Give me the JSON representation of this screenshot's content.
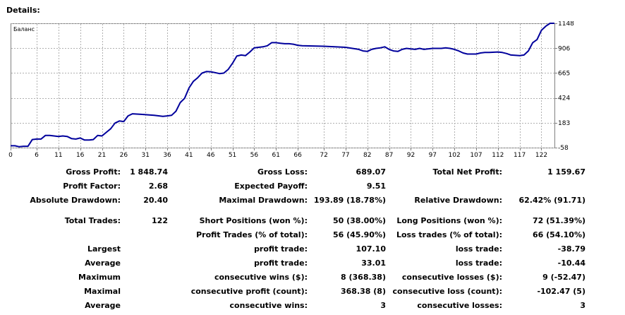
{
  "page": {
    "title": "Details:"
  },
  "chart_data": {
    "type": "line",
    "title": "Баланс",
    "x_ticks": [
      0,
      6,
      11,
      16,
      21,
      26,
      31,
      36,
      41,
      46,
      51,
      56,
      61,
      66,
      72,
      77,
      82,
      87,
      92,
      97,
      102,
      107,
      112,
      117,
      122
    ],
    "y_ticks": [
      -58,
      183,
      424,
      665,
      906,
      1148
    ],
    "xlim": [
      0,
      125
    ],
    "ylim": [
      -58,
      1148
    ],
    "grid": true,
    "series": [
      {
        "color": "#00009c",
        "x": [
          0,
          1,
          2,
          3,
          4,
          5,
          6,
          7,
          8,
          9,
          10,
          11,
          12,
          13,
          14,
          15,
          16,
          17,
          18,
          19,
          20,
          21,
          22,
          23,
          24,
          25,
          26,
          27,
          28,
          30,
          33,
          35,
          36,
          37,
          38,
          39,
          40,
          41,
          42,
          43,
          44,
          45,
          46,
          47,
          48,
          49,
          50,
          51,
          52,
          53,
          54,
          55,
          56,
          57,
          58,
          59,
          60,
          61,
          62,
          63,
          64,
          65,
          66,
          67,
          72,
          77,
          80,
          81,
          82,
          83,
          84,
          85,
          86,
          87,
          88,
          89,
          90,
          91,
          92,
          93,
          94,
          95,
          97,
          99,
          100,
          101,
          102,
          103,
          104,
          105,
          107,
          108,
          109,
          110,
          112,
          113,
          114,
          115,
          117,
          118,
          119,
          120,
          121,
          122,
          123,
          124,
          125
        ],
        "values": [
          -40,
          -40,
          -50,
          -45,
          -45,
          20,
          25,
          25,
          60,
          60,
          55,
          50,
          55,
          50,
          30,
          25,
          35,
          15,
          15,
          20,
          60,
          55,
          90,
          125,
          180,
          200,
          195,
          250,
          270,
          265,
          255,
          245,
          250,
          255,
          295,
          380,
          420,
          520,
          585,
          620,
          665,
          680,
          678,
          670,
          660,
          665,
          700,
          760,
          830,
          840,
          835,
          870,
          910,
          915,
          920,
          930,
          960,
          960,
          955,
          950,
          950,
          945,
          935,
          930,
          925,
          915,
          895,
          880,
          875,
          895,
          905,
          910,
          920,
          895,
          880,
          875,
          895,
          905,
          900,
          895,
          905,
          895,
          905,
          905,
          910,
          905,
          895,
          880,
          860,
          850,
          850,
          860,
          865,
          865,
          870,
          865,
          855,
          840,
          835,
          840,
          880,
          960,
          990,
          1080,
          1120,
          1148,
          1148
        ]
      }
    ]
  },
  "stats": {
    "gross_profit": {
      "label": "Gross Profit:",
      "value": "1 848.74"
    },
    "gross_loss": {
      "label": "Gross Loss:",
      "value": "689.07"
    },
    "total_net_profit": {
      "label": "Total Net Profit:",
      "value": "1 159.67"
    },
    "profit_factor": {
      "label": "Profit Factor:",
      "value": "2.68"
    },
    "expected_payoff": {
      "label": "Expected Payoff:",
      "value": "9.51"
    },
    "absolute_drawdown": {
      "label": "Absolute Drawdown:",
      "value": "20.40"
    },
    "maximal_drawdown": {
      "label": "Maximal Drawdown:",
      "value": "193.89 (18.78%)"
    },
    "relative_drawdown": {
      "label": "Relative Drawdown:",
      "value": "62.42% (91.71)"
    },
    "total_trades": {
      "label": "Total Trades:",
      "value": "122"
    },
    "short_positions": {
      "label": "Short Positions (won %):",
      "value": "50 (38.00%)"
    },
    "long_positions": {
      "label": "Long Positions (won %):",
      "value": "72 (51.39%)"
    },
    "profit_trades": {
      "label": "Profit Trades (% of total):",
      "value": "56 (45.90%)"
    },
    "loss_trades": {
      "label": "Loss trades (% of total):",
      "value": "66 (54.10%)"
    },
    "largest": {
      "label": "Largest",
      "profit_label": "profit trade:",
      "profit_value": "107.10",
      "loss_label": "loss trade:",
      "loss_value": "-38.79"
    },
    "average": {
      "label": "Average",
      "profit_label": "profit trade:",
      "profit_value": "33.01",
      "loss_label": "loss trade:",
      "loss_value": "-10.44"
    },
    "maximum": {
      "label": "Maximum",
      "profit_label": "consecutive wins ($):",
      "profit_value": "8 (368.38)",
      "loss_label": "consecutive losses ($):",
      "loss_value": "9 (-52.47)"
    },
    "maximal": {
      "label": "Maximal",
      "profit_label": "consecutive profit (count):",
      "profit_value": "368.38 (8)",
      "loss_label": "consecutive loss (count):",
      "loss_value": "-102.47 (5)"
    },
    "average_consecutive": {
      "label": "Average",
      "profit_label": "consecutive wins:",
      "profit_value": "3",
      "loss_label": "consecutive losses:",
      "loss_value": "3"
    }
  }
}
